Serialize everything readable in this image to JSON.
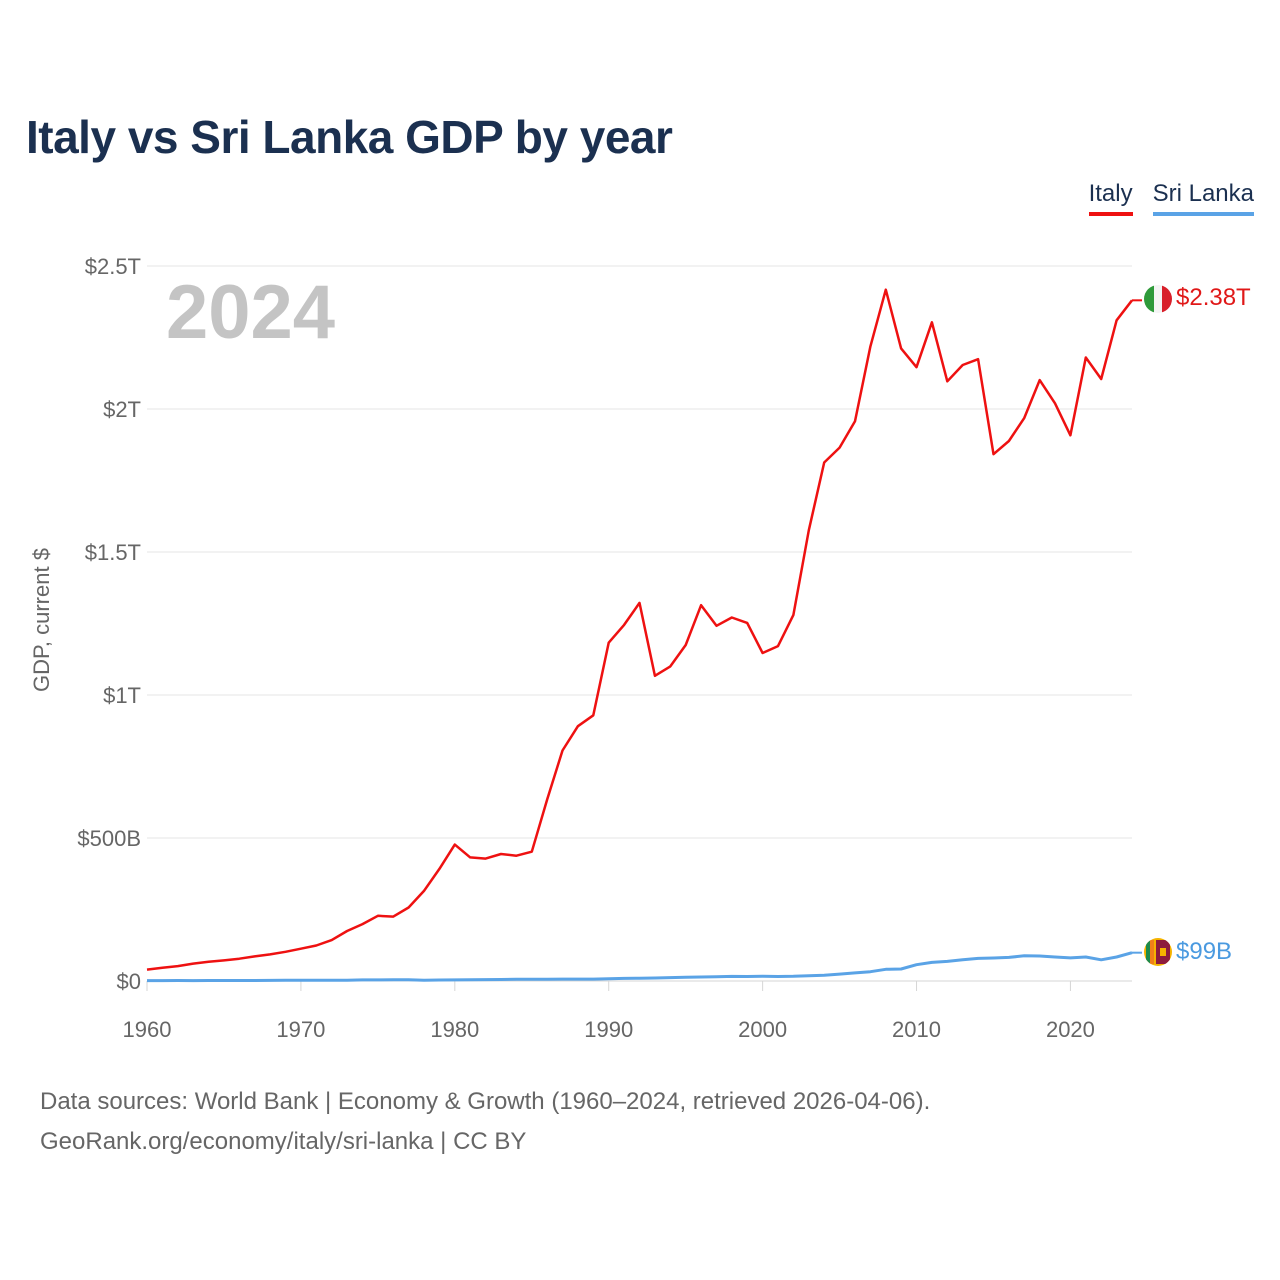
{
  "page_title": "Italy vs Sri Lanka GDP by year",
  "legend": {
    "italy_label": "Italy",
    "srilanka_label": "Sri Lanka"
  },
  "source": {
    "line1": "Data sources: World Bank | Economy & Growth (1960–2024, retrieved 2026-04-06).",
    "line2": "GeoRank.org/economy/italy/sri-lanka | CC BY"
  },
  "chart_data": {
    "type": "line",
    "title": "Italy vs Sri Lanka GDP by year",
    "xlabel": "",
    "ylabel": "GDP, current $",
    "xlim": [
      1960,
      2024
    ],
    "ylim": [
      0,
      2.5
    ],
    "y_unit": "trillion USD",
    "grid": true,
    "legend_position": "top-right",
    "year_label": "2024",
    "x_ticks": [
      1960,
      1970,
      1980,
      1990,
      2000,
      2010,
      2020
    ],
    "x_tick_labels": [
      "1960",
      "1970",
      "1980",
      "1990",
      "2000",
      "2010",
      "2020"
    ],
    "y_ticks": [
      0,
      0.5,
      1,
      1.5,
      2,
      2.5
    ],
    "y_tick_labels": [
      "$0",
      "$500B",
      "$1T",
      "$1.5T",
      "$2T",
      "$2.5T"
    ],
    "x": [
      1960,
      1961,
      1962,
      1963,
      1964,
      1965,
      1966,
      1967,
      1968,
      1969,
      1970,
      1971,
      1972,
      1973,
      1974,
      1975,
      1976,
      1977,
      1978,
      1979,
      1980,
      1981,
      1982,
      1983,
      1984,
      1985,
      1986,
      1987,
      1988,
      1989,
      1990,
      1991,
      1992,
      1993,
      1994,
      1995,
      1996,
      1997,
      1998,
      1999,
      2000,
      2001,
      2002,
      2003,
      2004,
      2005,
      2006,
      2007,
      2008,
      2009,
      2010,
      2011,
      2012,
      2013,
      2014,
      2015,
      2016,
      2017,
      2018,
      2019,
      2020,
      2021,
      2022,
      2023,
      2024
    ],
    "series": [
      {
        "name": "Italy",
        "color": "#ee1111",
        "end_label": "$2.38T",
        "values": [
          0.04,
          0.046,
          0.052,
          0.061,
          0.067,
          0.072,
          0.078,
          0.086,
          0.093,
          0.102,
          0.113,
          0.124,
          0.143,
          0.175,
          0.199,
          0.228,
          0.225,
          0.257,
          0.315,
          0.392,
          0.477,
          0.432,
          0.428,
          0.444,
          0.438,
          0.452,
          0.635,
          0.806,
          0.891,
          0.929,
          1.183,
          1.245,
          1.322,
          1.067,
          1.1,
          1.175,
          1.314,
          1.242,
          1.271,
          1.252,
          1.147,
          1.171,
          1.28,
          1.576,
          1.813,
          1.865,
          1.957,
          2.219,
          2.417,
          2.212,
          2.146,
          2.303,
          2.097,
          2.154,
          2.174,
          1.842,
          1.888,
          1.969,
          2.101,
          2.02,
          1.908,
          2.18,
          2.105,
          2.31,
          2.38
        ]
      },
      {
        "name": "Sri Lanka",
        "color": "#5aa3e6",
        "end_label": "$99B",
        "values": [
          0.0014,
          0.0015,
          0.0016,
          0.0015,
          0.0016,
          0.0018,
          0.0018,
          0.0019,
          0.0021,
          0.0023,
          0.0023,
          0.0024,
          0.0025,
          0.0029,
          0.0037,
          0.004,
          0.0041,
          0.0046,
          0.0027,
          0.0034,
          0.004,
          0.0044,
          0.0048,
          0.0052,
          0.0061,
          0.0061,
          0.0064,
          0.0066,
          0.0068,
          0.0068,
          0.0081,
          0.009,
          0.0097,
          0.0104,
          0.0119,
          0.013,
          0.0139,
          0.0152,
          0.016,
          0.0159,
          0.0163,
          0.0157,
          0.0165,
          0.0186,
          0.0204,
          0.024,
          0.0282,
          0.0324,
          0.041,
          0.042,
          0.0569,
          0.0652,
          0.0684,
          0.0743,
          0.0791,
          0.0804,
          0.0826,
          0.088,
          0.0874,
          0.084,
          0.0806,
          0.0838,
          0.0741,
          0.084,
          0.099
        ]
      }
    ]
  }
}
